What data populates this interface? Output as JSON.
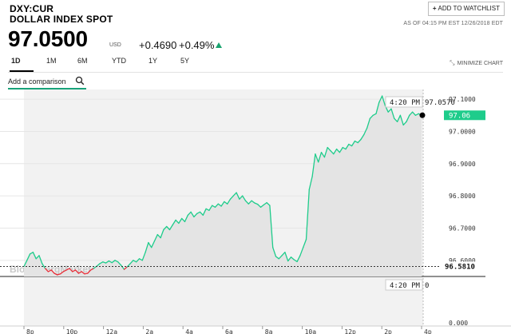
{
  "header": {
    "ticker": "DXY:CUR",
    "name": "DOLLAR INDEX SPOT",
    "watchlist_label": "ADD TO WATCHLIST",
    "as_of": "AS OF 04:15 PM EST 12/26/2018 EDT"
  },
  "quote": {
    "price": "97.0500",
    "currency": "USD",
    "change": "+0.4690",
    "change_pct": "+0.49%",
    "direction_icon": "triangle-up-icon",
    "up_color": "#1aa36f"
  },
  "tabs": [
    {
      "label": "1D",
      "active": true
    },
    {
      "label": "1M",
      "active": false
    },
    {
      "label": "6M",
      "active": false
    },
    {
      "label": "YTD",
      "active": false
    },
    {
      "label": "1Y",
      "active": false
    },
    {
      "label": "5Y",
      "active": false
    }
  ],
  "minimize_label": "MINIMIZE CHART",
  "compare": {
    "placeholder": "Add a comparison"
  },
  "chart_data": {
    "type": "line",
    "watermark": "BloombergMarkets",
    "x_ticks": [
      "8p",
      "10p",
      "12a",
      "2a",
      "4a",
      "6a",
      "8a",
      "10a",
      "12p",
      "2p",
      "4p"
    ],
    "y_ticks": [
      "97.1000",
      "97.0000",
      "96.9000",
      "96.8000",
      "96.7000",
      "96.6000"
    ],
    "y_range": [
      96.55,
      97.13
    ],
    "volume_tick": "0.000",
    "hover_time": "4:20 PM",
    "hover_value": "97.0570",
    "hover_volume": "0",
    "last_value": "97.06",
    "prev_close_value": "96.5810",
    "prev_close": 96.581,
    "line_color": "#1ecc8b",
    "below_color": "#e8303a",
    "series": [
      {
        "values": [
          96.581,
          96.6,
          96.62,
          96.625,
          96.605,
          96.615,
          96.59,
          96.575,
          96.565,
          96.57,
          96.56,
          96.555,
          96.558,
          96.565,
          96.57,
          96.575,
          96.565,
          96.57,
          96.56,
          96.565,
          96.558,
          96.56,
          96.57,
          96.575,
          96.582,
          96.59,
          96.595,
          96.592,
          96.598,
          96.593,
          96.6,
          96.595,
          96.585,
          96.572,
          96.58,
          96.59,
          96.6,
          96.595,
          96.605,
          96.6,
          96.625,
          96.655,
          96.64,
          96.66,
          96.68,
          96.67,
          96.695,
          96.705,
          96.695,
          96.71,
          96.725,
          96.715,
          96.73,
          96.72,
          96.74,
          96.75,
          96.735,
          96.745,
          96.75,
          96.74,
          96.76,
          96.755,
          96.77,
          96.765,
          96.775,
          96.768,
          96.782,
          96.775,
          96.79,
          96.8,
          96.81,
          96.79,
          96.8,
          96.785,
          96.775,
          96.785,
          96.778,
          96.774,
          96.765,
          96.772,
          96.779,
          96.77,
          96.64,
          96.612,
          96.605,
          96.615,
          96.625,
          96.598,
          96.61,
          96.602,
          96.596,
          96.615,
          96.64,
          96.665,
          96.82,
          96.86,
          96.93,
          96.905,
          96.935,
          96.92,
          96.95,
          96.94,
          96.93,
          96.945,
          96.935,
          96.95,
          96.945,
          96.96,
          96.955,
          96.97,
          96.965,
          96.975,
          96.99,
          97.01,
          97.04,
          97.05,
          97.055,
          97.09,
          97.11,
          97.08,
          97.06,
          97.07,
          97.04,
          97.03,
          97.05,
          97.02,
          97.03,
          97.05,
          97.06,
          97.05,
          97.055,
          97.05
        ],
        "color": "#1ecc8b"
      }
    ]
  }
}
